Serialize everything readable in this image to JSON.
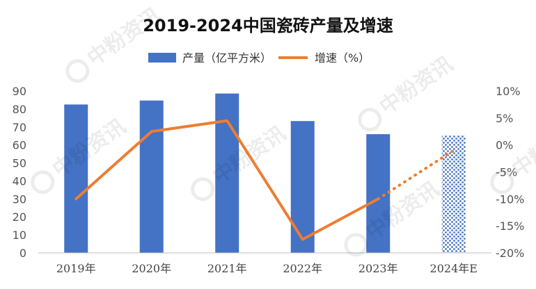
{
  "watermark": "中粉资讯",
  "chart_data": {
    "type": "bar",
    "title": "2019-2024中国瓷砖产量及增速",
    "categories": [
      "2019年",
      "2020年",
      "2021年",
      "2022年",
      "2023年",
      "2024年E"
    ],
    "series": [
      {
        "name": "产量（亿平方米）",
        "type": "bar",
        "axis": "left",
        "values": [
          82.5,
          84.7,
          88.6,
          73.3,
          66.0,
          65.4
        ],
        "color": "#4472C4",
        "forecast_pattern_last": true
      },
      {
        "name": "增速（%）",
        "type": "line",
        "axis": "right",
        "values": [
          -10.0,
          2.5,
          4.5,
          -17.5,
          -10.0,
          -1.0
        ],
        "color": "#ED7D31",
        "dashed_last_segment": true
      }
    ],
    "y_left": {
      "min": 0,
      "max": 90,
      "ticks": [
        "0",
        "10",
        "20",
        "30",
        "40",
        "50",
        "60",
        "70",
        "80",
        "90"
      ]
    },
    "y_right": {
      "min": -20,
      "max": 10,
      "ticks": [
        "-20%",
        "-15%",
        "-10%",
        "-5%",
        "0%",
        "5%",
        "10%"
      ]
    },
    "legend_position": "top",
    "grid": false
  }
}
